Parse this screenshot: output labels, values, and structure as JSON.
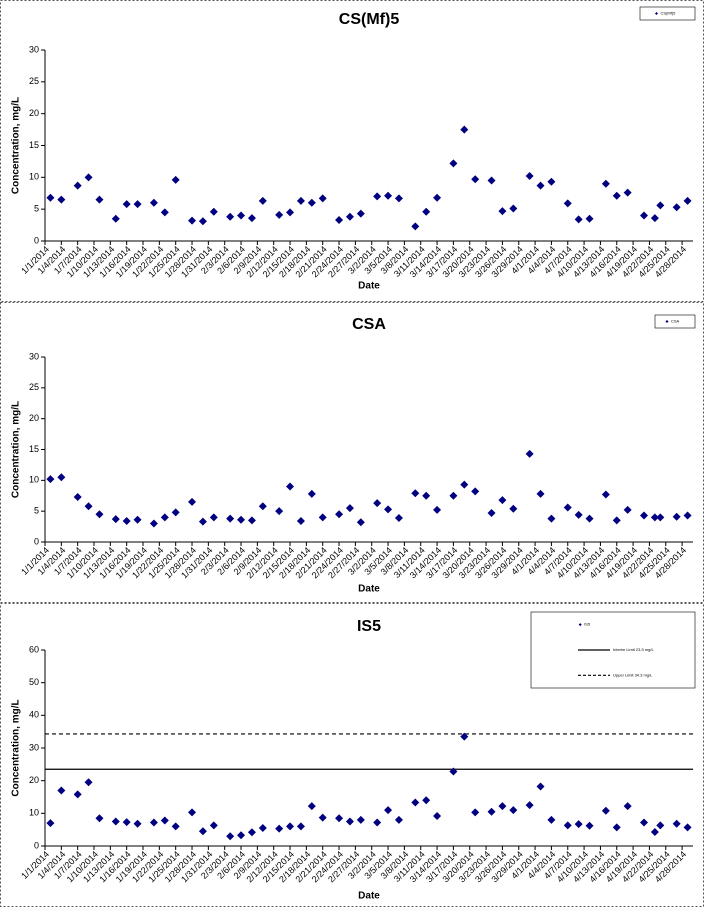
{
  "chart_data": [
    {
      "type": "scatter",
      "title": "CS(Mf)5",
      "x_label": "Date",
      "y_label": "Concentration, mg/L",
      "xlim": [
        "1/1/2014",
        "4/30/2014"
      ],
      "ylim": [
        0,
        30
      ],
      "yticks": [
        0,
        5,
        10,
        15,
        20,
        25,
        30
      ],
      "grid": false,
      "legend": "top-right",
      "xticks": [
        "1/1/2014",
        "1/4/2014",
        "1/7/2014",
        "1/10/2014",
        "1/13/2014",
        "1/16/2014",
        "1/19/2014",
        "1/22/2014",
        "1/25/2014",
        "1/28/2014",
        "1/31/2014",
        "2/3/2014",
        "2/6/2014",
        "2/9/2014",
        "2/12/2014",
        "2/15/2014",
        "2/18/2014",
        "2/21/2014",
        "2/24/2014",
        "2/27/2014",
        "3/2/2014",
        "3/5/2014",
        "3/8/2014",
        "3/11/2014",
        "3/14/2014",
        "3/17/2014",
        "3/20/2014",
        "3/23/2014",
        "3/26/2014",
        "3/29/2014",
        "4/1/2014",
        "4/4/2014",
        "4/7/2014",
        "4/10/2014",
        "4/13/2014",
        "4/16/2014",
        "4/19/2014",
        "4/22/2014",
        "4/25/2014",
        "4/28/2014"
      ],
      "series": [
        {
          "name": "CS(Mf)5",
          "color": "#000080",
          "x": [
            "1/2/2014",
            "1/4/2014",
            "1/7/2014",
            "1/9/2014",
            "1/11/2014",
            "1/14/2014",
            "1/16/2014",
            "1/18/2014",
            "1/21/2014",
            "1/23/2014",
            "1/25/2014",
            "1/28/2014",
            "1/30/2014",
            "2/1/2014",
            "2/4/2014",
            "2/6/2014",
            "2/8/2014",
            "2/10/2014",
            "2/13/2014",
            "2/15/2014",
            "2/17/2014",
            "2/19/2014",
            "2/21/2014",
            "2/24/2014",
            "2/26/2014",
            "2/28/2014",
            "3/3/2014",
            "3/5/2014",
            "3/7/2014",
            "3/10/2014",
            "3/12/2014",
            "3/14/2014",
            "3/17/2014",
            "3/19/2014",
            "3/21/2014",
            "3/24/2014",
            "3/26/2014",
            "3/28/2014",
            "3/31/2014",
            "4/2/2014",
            "4/4/2014",
            "4/7/2014",
            "4/9/2014",
            "4/11/2014",
            "4/14/2014",
            "4/16/2014",
            "4/18/2014",
            "4/21/2014",
            "4/23/2014",
            "4/24/2014",
            "4/27/2014",
            "4/29/2014"
          ],
          "values": [
            6.8,
            6.5,
            8.7,
            10,
            6.5,
            3.5,
            5.8,
            5.8,
            6,
            4.5,
            9.6,
            3.2,
            3.1,
            4.6,
            3.8,
            4,
            3.6,
            6.3,
            4.1,
            4.5,
            6.3,
            6,
            6.7,
            3.3,
            3.8,
            4.3,
            7,
            7.1,
            6.7,
            2.3,
            4.6,
            6.8,
            12.2,
            17.5,
            9.7,
            9.5,
            4.7,
            5.1,
            10.2,
            8.7,
            9.3,
            5.9,
            3.4,
            3.5,
            9,
            7.1,
            7.6,
            4,
            3.6,
            5.6,
            5.3,
            6.3
          ]
        }
      ]
    },
    {
      "type": "scatter",
      "title": "CSA",
      "x_label": "Date",
      "y_label": "Concentration, mg/L",
      "xlim": [
        "1/1/2014",
        "4/30/2014"
      ],
      "ylim": [
        0,
        30
      ],
      "yticks": [
        0,
        5,
        10,
        15,
        20,
        25,
        30
      ],
      "grid": false,
      "legend": "top-right",
      "xticks": [
        "1/1/2014",
        "1/4/2014",
        "1/7/2014",
        "1/10/2014",
        "1/13/2014",
        "1/16/2014",
        "1/19/2014",
        "1/22/2014",
        "1/25/2014",
        "1/28/2014",
        "1/31/2014",
        "2/3/2014",
        "2/6/2014",
        "2/9/2014",
        "2/12/2014",
        "2/15/2014",
        "2/18/2014",
        "2/21/2014",
        "2/24/2014",
        "2/27/2014",
        "3/2/2014",
        "3/5/2014",
        "3/8/2014",
        "3/11/2014",
        "3/14/2014",
        "3/17/2014",
        "3/20/2014",
        "3/23/2014",
        "3/26/2014",
        "3/29/2014",
        "4/1/2014",
        "4/4/2014",
        "4/7/2014",
        "4/10/2014",
        "4/13/2014",
        "4/16/2014",
        "4/19/2014",
        "4/22/2014",
        "4/25/2014",
        "4/28/2014"
      ],
      "series": [
        {
          "name": "CSA",
          "color": "#000080",
          "x": [
            "1/2/2014",
            "1/4/2014",
            "1/7/2014",
            "1/9/2014",
            "1/11/2014",
            "1/14/2014",
            "1/16/2014",
            "1/18/2014",
            "1/21/2014",
            "1/23/2014",
            "1/25/2014",
            "1/28/2014",
            "1/30/2014",
            "2/1/2014",
            "2/4/2014",
            "2/6/2014",
            "2/8/2014",
            "2/10/2014",
            "2/13/2014",
            "2/15/2014",
            "2/17/2014",
            "2/19/2014",
            "2/21/2014",
            "2/24/2014",
            "2/26/2014",
            "2/28/2014",
            "3/3/2014",
            "3/5/2014",
            "3/7/2014",
            "3/10/2014",
            "3/12/2014",
            "3/14/2014",
            "3/17/2014",
            "3/19/2014",
            "3/21/2014",
            "3/24/2014",
            "3/26/2014",
            "3/28/2014",
            "3/31/2014",
            "4/2/2014",
            "4/4/2014",
            "4/7/2014",
            "4/9/2014",
            "4/11/2014",
            "4/14/2014",
            "4/16/2014",
            "4/18/2014",
            "4/21/2014",
            "4/23/2014",
            "4/24/2014",
            "4/27/2014",
            "4/29/2014"
          ],
          "values": [
            10.2,
            10.5,
            7.3,
            5.8,
            4.5,
            3.7,
            3.4,
            3.6,
            3,
            4,
            4.8,
            6.5,
            3.3,
            4,
            3.8,
            3.6,
            3.5,
            5.8,
            5,
            9,
            3.4,
            7.8,
            4,
            4.5,
            5.5,
            3.2,
            6.3,
            5.3,
            3.9,
            7.9,
            7.5,
            5.2,
            7.5,
            9.3,
            8.2,
            4.7,
            6.8,
            5.4,
            14.3,
            7.8,
            3.8,
            5.6,
            4.4,
            3.8,
            7.7,
            3.5,
            5.2,
            4.3,
            4,
            4,
            4.1,
            4.3
          ]
        }
      ]
    },
    {
      "type": "scatter",
      "title": "IS5",
      "x_label": "Date",
      "y_label": "Concentration, mg/L",
      "xlim": [
        "1/1/2014",
        "4/30/2014"
      ],
      "ylim": [
        0,
        60
      ],
      "yticks": [
        0,
        10,
        20,
        30,
        40,
        50,
        60
      ],
      "grid": false,
      "legend": "top-right",
      "xticks": [
        "1/1/2014",
        "1/4/2014",
        "1/7/2014",
        "1/10/2014",
        "1/13/2014",
        "1/16/2014",
        "1/19/2014",
        "1/22/2014",
        "1/25/2014",
        "1/28/2014",
        "1/31/2014",
        "2/3/2014",
        "2/6/2014",
        "2/9/2014",
        "2/12/2014",
        "2/15/2014",
        "2/18/2014",
        "2/21/2014",
        "2/24/2014",
        "2/27/2014",
        "3/2/2014",
        "3/5/2014",
        "3/8/2014",
        "3/11/2014",
        "3/14/2014",
        "3/17/2014",
        "3/20/2014",
        "3/23/2014",
        "3/26/2014",
        "3/29/2014",
        "4/1/2014",
        "4/4/2014",
        "4/7/2014",
        "4/10/2014",
        "4/13/2014",
        "4/16/2014",
        "4/19/2014",
        "4/22/2014",
        "4/25/2014",
        "4/28/2014"
      ],
      "series": [
        {
          "name": "IS5",
          "color": "#000080",
          "x": [
            "1/2/2014",
            "1/4/2014",
            "1/7/2014",
            "1/9/2014",
            "1/11/2014",
            "1/14/2014",
            "1/16/2014",
            "1/18/2014",
            "1/21/2014",
            "1/23/2014",
            "1/25/2014",
            "1/28/2014",
            "1/30/2014",
            "2/1/2014",
            "2/4/2014",
            "2/6/2014",
            "2/8/2014",
            "2/10/2014",
            "2/13/2014",
            "2/15/2014",
            "2/17/2014",
            "2/19/2014",
            "2/21/2014",
            "2/24/2014",
            "2/26/2014",
            "2/28/2014",
            "3/3/2014",
            "3/5/2014",
            "3/7/2014",
            "3/10/2014",
            "3/12/2014",
            "3/14/2014",
            "3/17/2014",
            "3/19/2014",
            "3/21/2014",
            "3/24/2014",
            "3/26/2014",
            "3/28/2014",
            "3/31/2014",
            "4/2/2014",
            "4/4/2014",
            "4/7/2014",
            "4/9/2014",
            "4/11/2014",
            "4/14/2014",
            "4/16/2014",
            "4/18/2014",
            "4/21/2014",
            "4/23/2014",
            "4/24/2014",
            "4/27/2014",
            "4/29/2014"
          ],
          "values": [
            7,
            17,
            15.8,
            19.5,
            8.5,
            7.5,
            7.3,
            6.8,
            7.2,
            7.8,
            6,
            10.3,
            4.5,
            6.3,
            3,
            3.3,
            4.2,
            5.5,
            5.3,
            6,
            6,
            12.2,
            8.7,
            8.5,
            7.5,
            8,
            7.2,
            11,
            8,
            13.3,
            14,
            9.2,
            22.8,
            33.5,
            10.3,
            10.5,
            12.2,
            11,
            12.5,
            18.2,
            8,
            6.3,
            6.7,
            6.2,
            10.8,
            5.7,
            12.2,
            7.2,
            4.3,
            6.3,
            6.8,
            5.7
          ]
        }
      ],
      "reference_lines": [
        {
          "name": "Interim Limit 23.5 mg/L",
          "value": 23.5,
          "style": "solid",
          "color": "#000000"
        },
        {
          "name": "Upper Limit 34.3 mg/L",
          "value": 34.3,
          "style": "dashed",
          "color": "#000000"
        }
      ]
    }
  ]
}
